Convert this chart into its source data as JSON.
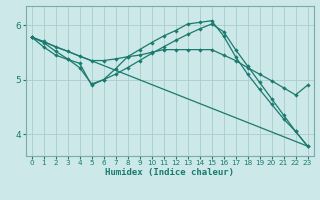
{
  "xlabel": "Humidex (Indice chaleur)",
  "bg_color": "#cce8e8",
  "line_color": "#1a7a6e",
  "grid_color": "#aacccc",
  "xlim": [
    -0.5,
    23.5
  ],
  "ylim": [
    3.6,
    6.35
  ],
  "yticks": [
    4,
    5,
    6
  ],
  "xticks": [
    0,
    1,
    2,
    3,
    4,
    5,
    6,
    7,
    8,
    9,
    10,
    11,
    12,
    13,
    14,
    15,
    16,
    17,
    18,
    19,
    20,
    21,
    22,
    23
  ],
  "line1": {
    "x": [
      0,
      1,
      2,
      3,
      4,
      5,
      6,
      7,
      8,
      9,
      10,
      11,
      12,
      13,
      14,
      15,
      16,
      17,
      18,
      19,
      20,
      21,
      22,
      23
    ],
    "y": [
      5.78,
      5.7,
      5.6,
      5.52,
      5.43,
      5.35,
      5.35,
      5.38,
      5.42,
      5.45,
      5.5,
      5.55,
      5.55,
      5.55,
      5.55,
      5.55,
      5.45,
      5.35,
      5.22,
      5.1,
      4.98,
      4.85,
      4.72,
      4.9
    ]
  },
  "line2": {
    "x": [
      0,
      1,
      2,
      3,
      4,
      5,
      6,
      7,
      8,
      9,
      10,
      11,
      12,
      13,
      14,
      15,
      16,
      17,
      18,
      19,
      20,
      21,
      22,
      23
    ],
    "y": [
      5.78,
      5.68,
      5.52,
      5.38,
      5.22,
      4.92,
      5.0,
      5.1,
      5.22,
      5.35,
      5.48,
      5.6,
      5.72,
      5.83,
      5.93,
      6.02,
      5.88,
      5.55,
      5.25,
      4.95,
      4.65,
      4.35,
      4.05,
      3.78
    ]
  },
  "line3": {
    "x": [
      0,
      1,
      2,
      3,
      4,
      5,
      6,
      7,
      8,
      9,
      10,
      11,
      12,
      13,
      14,
      15,
      16,
      17,
      18,
      19,
      20,
      21,
      22,
      23
    ],
    "y": [
      5.78,
      5.6,
      5.45,
      5.37,
      5.3,
      4.9,
      5.0,
      5.2,
      5.42,
      5.55,
      5.68,
      5.8,
      5.9,
      6.02,
      6.05,
      6.08,
      5.8,
      5.42,
      5.1,
      4.82,
      4.55,
      4.28,
      4.05,
      3.78
    ]
  },
  "line4": {
    "x": [
      0,
      23
    ],
    "y": [
      5.78,
      3.78
    ]
  }
}
